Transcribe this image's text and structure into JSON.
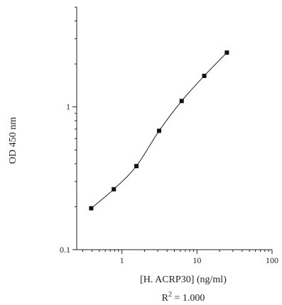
{
  "chart_data": {
    "type": "scatter",
    "title": "",
    "xlabel": "[H. ACRP30] (ng/ml)",
    "ylabel": "OD 450 nm",
    "x_scale": "log",
    "y_scale": "log",
    "xlim": [
      0.25,
      100
    ],
    "ylim": [
      0.1,
      5
    ],
    "x_ticks": [
      {
        "value": 1,
        "label": "1"
      },
      {
        "value": 10,
        "label": "10"
      },
      {
        "value": 100,
        "label": "100"
      }
    ],
    "y_ticks": [
      {
        "value": 0.1,
        "label": "0.1"
      },
      {
        "value": 1,
        "label": "1"
      }
    ],
    "grid": false,
    "fit_curve": true,
    "annotation": {
      "prefix": "R",
      "sup": "2",
      "suffix": " = 1.000"
    },
    "series": [
      {
        "x": [
          0.39,
          0.78,
          1.56,
          3.13,
          6.25,
          12.5,
          25
        ],
        "y": [
          0.195,
          0.265,
          0.385,
          0.68,
          1.1,
          1.65,
          2.4
        ]
      }
    ]
  }
}
